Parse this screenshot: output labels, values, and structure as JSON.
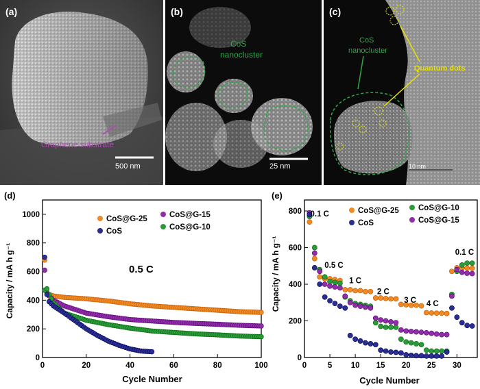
{
  "figure": {
    "panel_a": {
      "label": "(a)",
      "annotation": "Graphene substrate",
      "scale_bar": "500 nm",
      "colors": {
        "annotation": "#b04bb4",
        "background": "#3a3a3a"
      }
    },
    "panel_b": {
      "label": "(b)",
      "annotation": "CoS nanocluster",
      "annotation_lines": [
        "CoS",
        "nanocluster"
      ],
      "scale_bar": "25 nm",
      "colors": {
        "annotation": "#2ea84a"
      }
    },
    "panel_c": {
      "label": "(c)",
      "annotation_cos_lines": [
        "CoS",
        "nanocluster"
      ],
      "annotation_qd": "Quantum dots",
      "scale_bar": "10 nm",
      "colors": {
        "cos": "#2ea84a",
        "qd": "#e8e000"
      }
    }
  },
  "chart_data": [
    {
      "panel_label": "(d)",
      "type": "scatter",
      "xlabel": "Cycle Number",
      "ylabel": "Capacity / mA h g⁻¹",
      "xlim": [
        0,
        100
      ],
      "ylim": [
        0,
        1100
      ],
      "xticks": [
        0,
        20,
        40,
        60,
        80,
        100
      ],
      "yticks": [
        0,
        200,
        400,
        600,
        800,
        1000
      ],
      "annotation": "0.5 C",
      "legend": [
        "CoS@G-25",
        "CoS@G-15",
        "CoS",
        "CoS@G-10"
      ],
      "series": [
        {
          "name": "CoS@G-25",
          "color": "#f08a24",
          "points": [
            [
              1,
              680
            ],
            [
              2,
              460
            ],
            [
              3,
              440
            ],
            [
              5,
              430
            ],
            [
              10,
              420
            ],
            [
              20,
              410
            ],
            [
              30,
              395
            ],
            [
              40,
              375
            ],
            [
              50,
              360
            ],
            [
              60,
              350
            ],
            [
              70,
              340
            ],
            [
              80,
              330
            ],
            [
              90,
              320
            ],
            [
              100,
              315
            ]
          ]
        },
        {
          "name": "CoS@G-15",
          "color": "#8e2fa8",
          "points": [
            [
              1,
              610
            ],
            [
              2,
              450
            ],
            [
              3,
              430
            ],
            [
              5,
              400
            ],
            [
              10,
              360
            ],
            [
              20,
              310
            ],
            [
              30,
              285
            ],
            [
              40,
              265
            ],
            [
              50,
              255
            ],
            [
              60,
              245
            ],
            [
              70,
              238
            ],
            [
              80,
              232
            ],
            [
              90,
              225
            ],
            [
              100,
              220
            ]
          ]
        },
        {
          "name": "CoS@G-10",
          "color": "#2c9a3a",
          "points": [
            [
              1,
              470
            ],
            [
              2,
              480
            ],
            [
              3,
              440
            ],
            [
              5,
              380
            ],
            [
              10,
              310
            ],
            [
              20,
              260
            ],
            [
              30,
              230
            ],
            [
              40,
              205
            ],
            [
              50,
              185
            ],
            [
              60,
              175
            ],
            [
              70,
              165
            ],
            [
              80,
              158
            ],
            [
              90,
              150
            ],
            [
              100,
              145
            ]
          ]
        },
        {
          "name": "CoS",
          "color": "#2a2f8f",
          "points": [
            [
              1,
              700
            ],
            [
              2,
              440
            ],
            [
              3,
              390
            ],
            [
              5,
              360
            ],
            [
              10,
              310
            ],
            [
              15,
              255
            ],
            [
              20,
              200
            ],
            [
              25,
              155
            ],
            [
              30,
              115
            ],
            [
              35,
              85
            ],
            [
              40,
              60
            ],
            [
              45,
              45
            ],
            [
              50,
              40
            ]
          ]
        }
      ]
    },
    {
      "panel_label": "(e)",
      "type": "scatter",
      "xlabel": "Cycle Number",
      "ylabel": "Capacity / mA h g⁻¹",
      "xlim": [
        0,
        34
      ],
      "ylim": [
        0,
        860
      ],
      "xticks": [
        0,
        5,
        10,
        15,
        20,
        25,
        30
      ],
      "yticks": [
        0,
        200,
        400,
        600,
        800
      ],
      "rate_labels": [
        {
          "text": "0.1 C",
          "x": 3,
          "y": 770
        },
        {
          "text": "0.5 C",
          "x": 5.8,
          "y": 490
        },
        {
          "text": "1 C",
          "x": 10,
          "y": 405
        },
        {
          "text": "2 C",
          "x": 15.5,
          "y": 345
        },
        {
          "text": "3 C",
          "x": 20.8,
          "y": 300
        },
        {
          "text": "4 C",
          "x": 25.2,
          "y": 280
        },
        {
          "text": "0.1 C",
          "x": 31.5,
          "y": 560
        }
      ],
      "legend": [
        "CoS@G-25",
        "CoS@G-10",
        "CoS",
        "CoS@G-15"
      ],
      "series": [
        {
          "name": "CoS@G-25",
          "color": "#f08a24",
          "points": [
            [
              1,
              740
            ],
            [
              2,
              540
            ],
            [
              3,
              440
            ],
            [
              4,
              430
            ],
            [
              5,
              430
            ],
            [
              6,
              425
            ],
            [
              7,
              420
            ],
            [
              8,
              370
            ],
            [
              9,
              370
            ],
            [
              10,
              365
            ],
            [
              11,
              365
            ],
            [
              12,
              360
            ],
            [
              13,
              360
            ],
            [
              14,
              325
            ],
            [
              15,
              325
            ],
            [
              16,
              322
            ],
            [
              17,
              320
            ],
            [
              18,
              320
            ],
            [
              19,
              290
            ],
            [
              20,
              288
            ],
            [
              21,
              285
            ],
            [
              22,
              285
            ],
            [
              23,
              282
            ],
            [
              24,
              245
            ],
            [
              25,
              243
            ],
            [
              26,
              242
            ],
            [
              27,
              242
            ],
            [
              28,
              240
            ],
            [
              29,
              470
            ],
            [
              30,
              490
            ],
            [
              31,
              490
            ],
            [
              32,
              488
            ],
            [
              33,
              487
            ]
          ]
        },
        {
          "name": "CoS@G-10",
          "color": "#2c9a3a",
          "points": [
            [
              1,
              770
            ],
            [
              2,
              600
            ],
            [
              3,
              480
            ],
            [
              4,
              440
            ],
            [
              5,
              415
            ],
            [
              6,
              410
            ],
            [
              7,
              405
            ],
            [
              8,
              330
            ],
            [
              9,
              310
            ],
            [
              10,
              295
            ],
            [
              11,
              290
            ],
            [
              12,
              285
            ],
            [
              13,
              280
            ],
            [
              14,
              190
            ],
            [
              15,
              170
            ],
            [
              16,
              165
            ],
            [
              17,
              165
            ],
            [
              18,
              165
            ],
            [
              19,
              100
            ],
            [
              20,
              85
            ],
            [
              21,
              80
            ],
            [
              22,
              75
            ],
            [
              23,
              70
            ],
            [
              24,
              40
            ],
            [
              25,
              35
            ],
            [
              26,
              35
            ],
            [
              27,
              35
            ],
            [
              28,
              35
            ],
            [
              29,
              345
            ],
            [
              30,
              470
            ],
            [
              31,
              505
            ],
            [
              32,
              515
            ],
            [
              33,
              515
            ]
          ]
        },
        {
          "name": "CoS@G-15",
          "color": "#8e2fa8",
          "points": [
            [
              1,
              790
            ],
            [
              2,
              570
            ],
            [
              3,
              470
            ],
            [
              4,
              400
            ],
            [
              5,
              390
            ],
            [
              6,
              385
            ],
            [
              7,
              380
            ],
            [
              8,
              335
            ],
            [
              9,
              300
            ],
            [
              10,
              285
            ],
            [
              11,
              280
            ],
            [
              12,
              275
            ],
            [
              13,
              270
            ],
            [
              14,
              215
            ],
            [
              15,
              205
            ],
            [
              16,
              200
            ],
            [
              17,
              195
            ],
            [
              18,
              190
            ],
            [
              19,
              150
            ],
            [
              20,
              145
            ],
            [
              21,
              142
            ],
            [
              22,
              140
            ],
            [
              23,
              138
            ],
            [
              24,
              135
            ],
            [
              25,
              132
            ],
            [
              26,
              128
            ],
            [
              27,
              125
            ],
            [
              28,
              125
            ],
            [
              29,
              335
            ],
            [
              30,
              480
            ],
            [
              31,
              465
            ],
            [
              32,
              460
            ],
            [
              33,
              458
            ]
          ]
        },
        {
          "name": "CoS",
          "color": "#2a2f8f",
          "points": [
            [
              1,
              780
            ],
            [
              2,
              490
            ],
            [
              3,
              400
            ],
            [
              4,
              330
            ],
            [
              5,
              310
            ],
            [
              6,
              295
            ],
            [
              7,
              280
            ],
            [
              8,
              270
            ],
            [
              9,
              120
            ],
            [
              10,
              100
            ],
            [
              11,
              90
            ],
            [
              12,
              80
            ],
            [
              13,
              75
            ],
            [
              14,
              70
            ],
            [
              15,
              40
            ],
            [
              16,
              35
            ],
            [
              17,
              30
            ],
            [
              18,
              28
            ],
            [
              19,
              25
            ],
            [
              20,
              15
            ],
            [
              21,
              12
            ],
            [
              22,
              10
            ],
            [
              23,
              10
            ],
            [
              24,
              8
            ],
            [
              25,
              8
            ],
            [
              26,
              8
            ],
            [
              27,
              8
            ],
            [
              28,
              30
            ],
            [
              29,
              270
            ],
            [
              30,
              220
            ],
            [
              31,
              190
            ],
            [
              32,
              175
            ],
            [
              33,
              172
            ]
          ]
        }
      ]
    }
  ]
}
